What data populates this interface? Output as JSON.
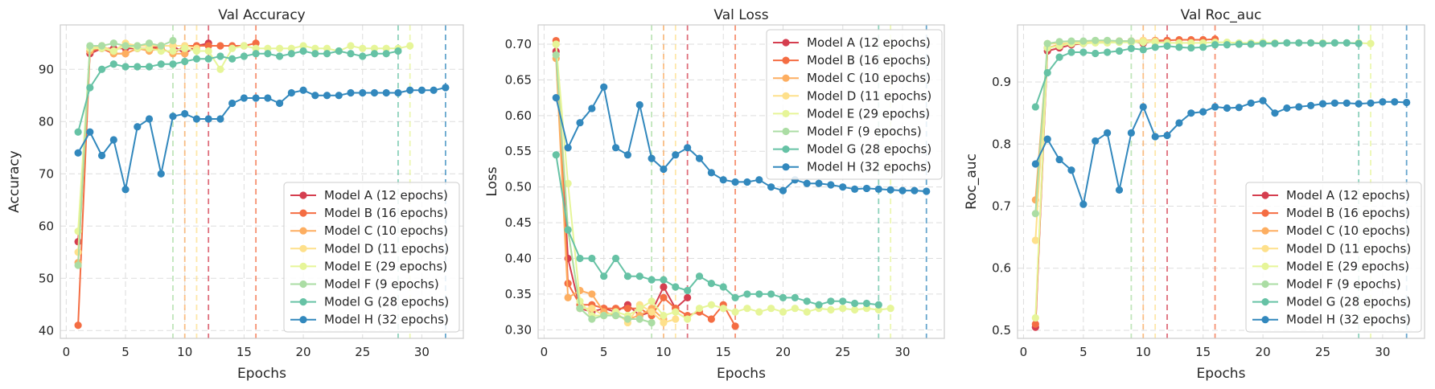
{
  "series_meta": [
    {
      "name": "Model A (12 epochs)",
      "color": "#d53e4f",
      "epochs": 12
    },
    {
      "name": "Model B (16 epochs)",
      "color": "#f46d43",
      "epochs": 16
    },
    {
      "name": "Model C (10 epochs)",
      "color": "#fdae61",
      "epochs": 10
    },
    {
      "name": "Model D (11 epochs)",
      "color": "#fee08b",
      "epochs": 11
    },
    {
      "name": "Model E (29 epochs)",
      "color": "#e6f598",
      "epochs": 29
    },
    {
      "name": "Model F (9 epochs)",
      "color": "#abdda4",
      "epochs": 9
    },
    {
      "name": "Model G (28 epochs)",
      "color": "#66c2a5",
      "epochs": 28
    },
    {
      "name": "Model H (32 epochs)",
      "color": "#3288bd",
      "epochs": 32
    }
  ],
  "chart_data": [
    {
      "type": "line",
      "title": "Val Accuracy",
      "xlabel": "Epochs",
      "ylabel": "Accuracy",
      "xlim": [
        -0.5,
        33.5
      ],
      "ylim": [
        38.5,
        98.5
      ],
      "xticks": [
        0,
        5,
        10,
        15,
        20,
        25,
        30
      ],
      "yticks": [
        40,
        50,
        60,
        70,
        80,
        90
      ],
      "legend": "lower-right",
      "grid": true,
      "series": [
        {
          "name": "Model A (12 epochs)",
          "values": [
            57,
            93,
            94,
            94,
            94,
            94,
            94,
            94.5,
            94.5,
            93,
            94.5,
            95
          ]
        },
        {
          "name": "Model B (16 epochs)",
          "values": [
            41,
            93.5,
            94,
            93,
            93,
            94,
            94,
            94,
            93,
            94.5,
            94.5,
            94.5,
            94.5,
            94.5,
            94.5,
            95
          ]
        },
        {
          "name": "Model C (10 epochs)",
          "values": [
            53,
            93.5,
            94.5,
            93,
            93,
            94,
            93.5,
            94,
            93,
            93
          ]
        },
        {
          "name": "Model D (11 epochs)",
          "values": [
            55,
            94,
            94.5,
            93.5,
            95,
            94.5,
            94.5,
            94.5,
            94.5,
            94.5,
            94
          ]
        },
        {
          "name": "Model E (29 epochs)",
          "values": [
            59,
            94,
            94,
            93.5,
            94.5,
            94,
            94,
            93.5,
            93.5,
            94,
            93.5,
            93.5,
            90,
            94,
            94.5,
            94,
            94,
            94,
            94,
            94.5,
            94,
            94,
            93.5,
            94.5,
            94,
            94,
            94,
            94,
            94.5
          ]
        },
        {
          "name": "Model F (9 epochs)",
          "values": [
            52.5,
            94.5,
            94.5,
            95,
            94.5,
            94.5,
            95,
            94.5,
            95.5
          ]
        },
        {
          "name": "Model G (28 epochs)",
          "values": [
            78,
            86.5,
            90,
            91,
            90.5,
            90.5,
            90.5,
            91,
            91,
            91.5,
            92,
            92,
            92.5,
            92,
            92.5,
            93,
            93,
            92.5,
            93,
            93.5,
            93,
            93,
            93.5,
            93,
            92.5,
            93,
            93,
            93.5
          ]
        },
        {
          "name": "Model H (32 epochs)",
          "values": [
            74,
            78,
            73.5,
            76.5,
            67,
            79,
            80.5,
            70,
            81,
            81.5,
            80.5,
            80.5,
            80.5,
            83.5,
            84.5,
            84.5,
            84.5,
            83.5,
            85.5,
            86,
            85,
            85,
            85,
            85.5,
            85.5,
            85.5,
            85.5,
            85.5,
            86,
            86,
            86,
            86.5
          ]
        }
      ]
    },
    {
      "type": "line",
      "title": "Val Loss",
      "xlabel": "Epochs",
      "ylabel": "Loss",
      "xlim": [
        -0.5,
        33.5
      ],
      "ylim": [
        0.288,
        0.727
      ],
      "xticks": [
        0,
        5,
        10,
        15,
        20,
        25,
        30
      ],
      "yticks": [
        0.3,
        0.35,
        0.4,
        0.45,
        0.5,
        0.55,
        0.6,
        0.65,
        0.7
      ],
      "ytick_labels": [
        "0.30",
        "0.35",
        "0.40",
        "0.45",
        "0.50",
        "0.55",
        "0.60",
        "0.65",
        "0.70"
      ],
      "legend": "upper-right",
      "grid": true,
      "series": [
        {
          "name": "Model A (12 epochs)",
          "values": [
            0.69,
            0.4,
            0.33,
            0.325,
            0.33,
            0.325,
            0.335,
            0.32,
            0.325,
            0.36,
            0.33,
            0.345
          ]
        },
        {
          "name": "Model B (16 epochs)",
          "values": [
            0.705,
            0.365,
            0.335,
            0.335,
            0.33,
            0.33,
            0.33,
            0.33,
            0.32,
            0.345,
            0.33,
            0.32,
            0.325,
            0.315,
            0.335,
            0.305
          ]
        },
        {
          "name": "Model C (10 epochs)",
          "values": [
            0.68,
            0.345,
            0.355,
            0.35,
            0.325,
            0.32,
            0.315,
            0.32,
            0.33,
            0.315
          ]
        },
        {
          "name": "Model D (11 epochs)",
          "values": [
            0.7,
            0.44,
            0.33,
            0.33,
            0.32,
            0.325,
            0.31,
            0.335,
            0.325,
            0.31,
            0.315
          ]
        },
        {
          "name": "Model E (29 epochs)",
          "values": [
            0.7,
            0.505,
            0.34,
            0.32,
            0.32,
            0.325,
            0.32,
            0.33,
            0.34,
            0.32,
            0.325,
            0.315,
            0.33,
            0.335,
            0.33,
            0.325,
            0.33,
            0.325,
            0.33,
            0.325,
            0.33,
            0.325,
            0.33,
            0.328,
            0.33,
            0.328,
            0.33,
            0.328,
            0.33
          ]
        },
        {
          "name": "Model F (9 epochs)",
          "values": [
            0.685,
            0.44,
            0.33,
            0.315,
            0.32,
            0.32,
            0.315,
            0.315,
            0.31
          ]
        },
        {
          "name": "Model G (28 epochs)",
          "values": [
            0.545,
            0.44,
            0.4,
            0.4,
            0.375,
            0.4,
            0.375,
            0.375,
            0.37,
            0.37,
            0.36,
            0.355,
            0.375,
            0.365,
            0.36,
            0.345,
            0.35,
            0.35,
            0.35,
            0.345,
            0.345,
            0.34,
            0.335,
            0.34,
            0.34,
            0.337,
            0.337,
            0.335
          ]
        },
        {
          "name": "Model H (32 epochs)",
          "values": [
            0.625,
            0.555,
            0.59,
            0.61,
            0.64,
            0.555,
            0.545,
            0.615,
            0.54,
            0.525,
            0.545,
            0.555,
            0.54,
            0.52,
            0.51,
            0.507,
            0.507,
            0.51,
            0.5,
            0.495,
            0.51,
            0.505,
            0.505,
            0.503,
            0.5,
            0.497,
            0.498,
            0.497,
            0.496,
            0.495,
            0.495,
            0.494
          ]
        }
      ]
    },
    {
      "type": "line",
      "title": "Val Roc_auc",
      "xlabel": "Epochs",
      "ylabel": "Roc_auc",
      "xlim": [
        -0.5,
        33.5
      ],
      "ylim": [
        0.487,
        0.992
      ],
      "xticks": [
        0,
        5,
        10,
        15,
        20,
        25,
        30
      ],
      "yticks": [
        0.5,
        0.6,
        0.7,
        0.8,
        0.9
      ],
      "ytick_labels": [
        "0.5",
        "0.6",
        "0.7",
        "0.8",
        "0.9"
      ],
      "legend": "lower-right",
      "grid": true,
      "series": [
        {
          "name": "Model A (12 epochs)",
          "values": [
            0.505,
            0.95,
            0.955,
            0.96,
            0.962,
            0.964,
            0.964,
            0.965,
            0.966,
            0.962,
            0.966,
            0.967
          ]
        },
        {
          "name": "Model B (16 epochs)",
          "values": [
            0.51,
            0.955,
            0.96,
            0.962,
            0.964,
            0.964,
            0.965,
            0.966,
            0.966,
            0.967,
            0.967,
            0.967,
            0.968,
            0.968,
            0.968,
            0.969
          ]
        },
        {
          "name": "Model C (10 epochs)",
          "values": [
            0.71,
            0.955,
            0.96,
            0.962,
            0.964,
            0.964,
            0.965,
            0.966,
            0.966,
            0.965
          ]
        },
        {
          "name": "Model D (11 epochs)",
          "values": [
            0.645,
            0.962,
            0.962,
            0.963,
            0.964,
            0.965,
            0.966,
            0.966,
            0.966,
            0.967,
            0.966
          ]
        },
        {
          "name": "Model E (29 epochs)",
          "values": [
            0.52,
            0.955,
            0.958,
            0.962,
            0.962,
            0.963,
            0.963,
            0.964,
            0.964,
            0.964,
            0.964,
            0.963,
            0.963,
            0.963,
            0.963,
            0.964,
            0.964,
            0.963,
            0.963,
            0.964,
            0.963,
            0.963,
            0.963,
            0.963,
            0.963,
            0.963,
            0.963,
            0.963,
            0.962
          ]
        },
        {
          "name": "Model F (9 epochs)",
          "values": [
            0.688,
            0.962,
            0.965,
            0.966,
            0.966,
            0.967,
            0.967,
            0.966,
            0.966
          ]
        },
        {
          "name": "Model G (28 epochs)",
          "values": [
            0.86,
            0.915,
            0.94,
            0.948,
            0.948,
            0.946,
            0.948,
            0.95,
            0.954,
            0.952,
            0.956,
            0.958,
            0.956,
            0.955,
            0.956,
            0.96,
            0.96,
            0.961,
            0.961,
            0.962,
            0.962,
            0.963,
            0.963,
            0.963,
            0.962,
            0.963,
            0.963,
            0.962
          ]
        },
        {
          "name": "Model H (32 epochs)",
          "values": [
            0.768,
            0.808,
            0.775,
            0.758,
            0.703,
            0.805,
            0.818,
            0.726,
            0.818,
            0.86,
            0.812,
            0.814,
            0.834,
            0.85,
            0.852,
            0.86,
            0.858,
            0.859,
            0.866,
            0.87,
            0.85,
            0.858,
            0.86,
            0.862,
            0.865,
            0.866,
            0.866,
            0.865,
            0.866,
            0.868,
            0.868,
            0.867
          ]
        }
      ]
    }
  ]
}
